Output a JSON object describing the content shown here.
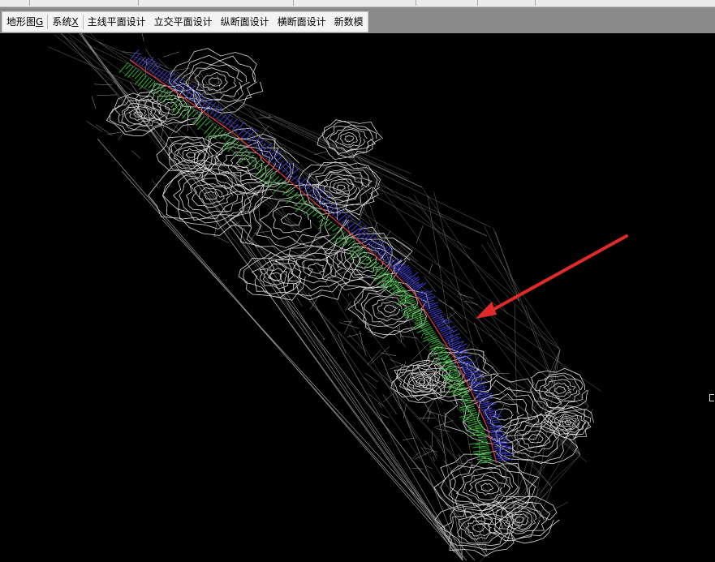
{
  "menu": {
    "items": [
      {
        "label": "地形图",
        "accel": "G"
      },
      {
        "label": "系统",
        "accel": "X"
      },
      {
        "label": "主线平面设计",
        "accel": ""
      },
      {
        "label": "立交平面设计",
        "accel": ""
      },
      {
        "label": "纵断面设计",
        "accel": ""
      },
      {
        "label": "横断面设计",
        "accel": ""
      },
      {
        "label": "新数模",
        "accel": ""
      }
    ]
  },
  "drawing": {
    "background": "#000000",
    "terrain_color": "#d9d9d9",
    "triangulation_color": "#9a9a9a",
    "centerline_color": "#e53935",
    "left_slope_color": "#3b3bd6",
    "right_slope_color": "#2fb52f",
    "arrow_color": "#e02a2a"
  }
}
